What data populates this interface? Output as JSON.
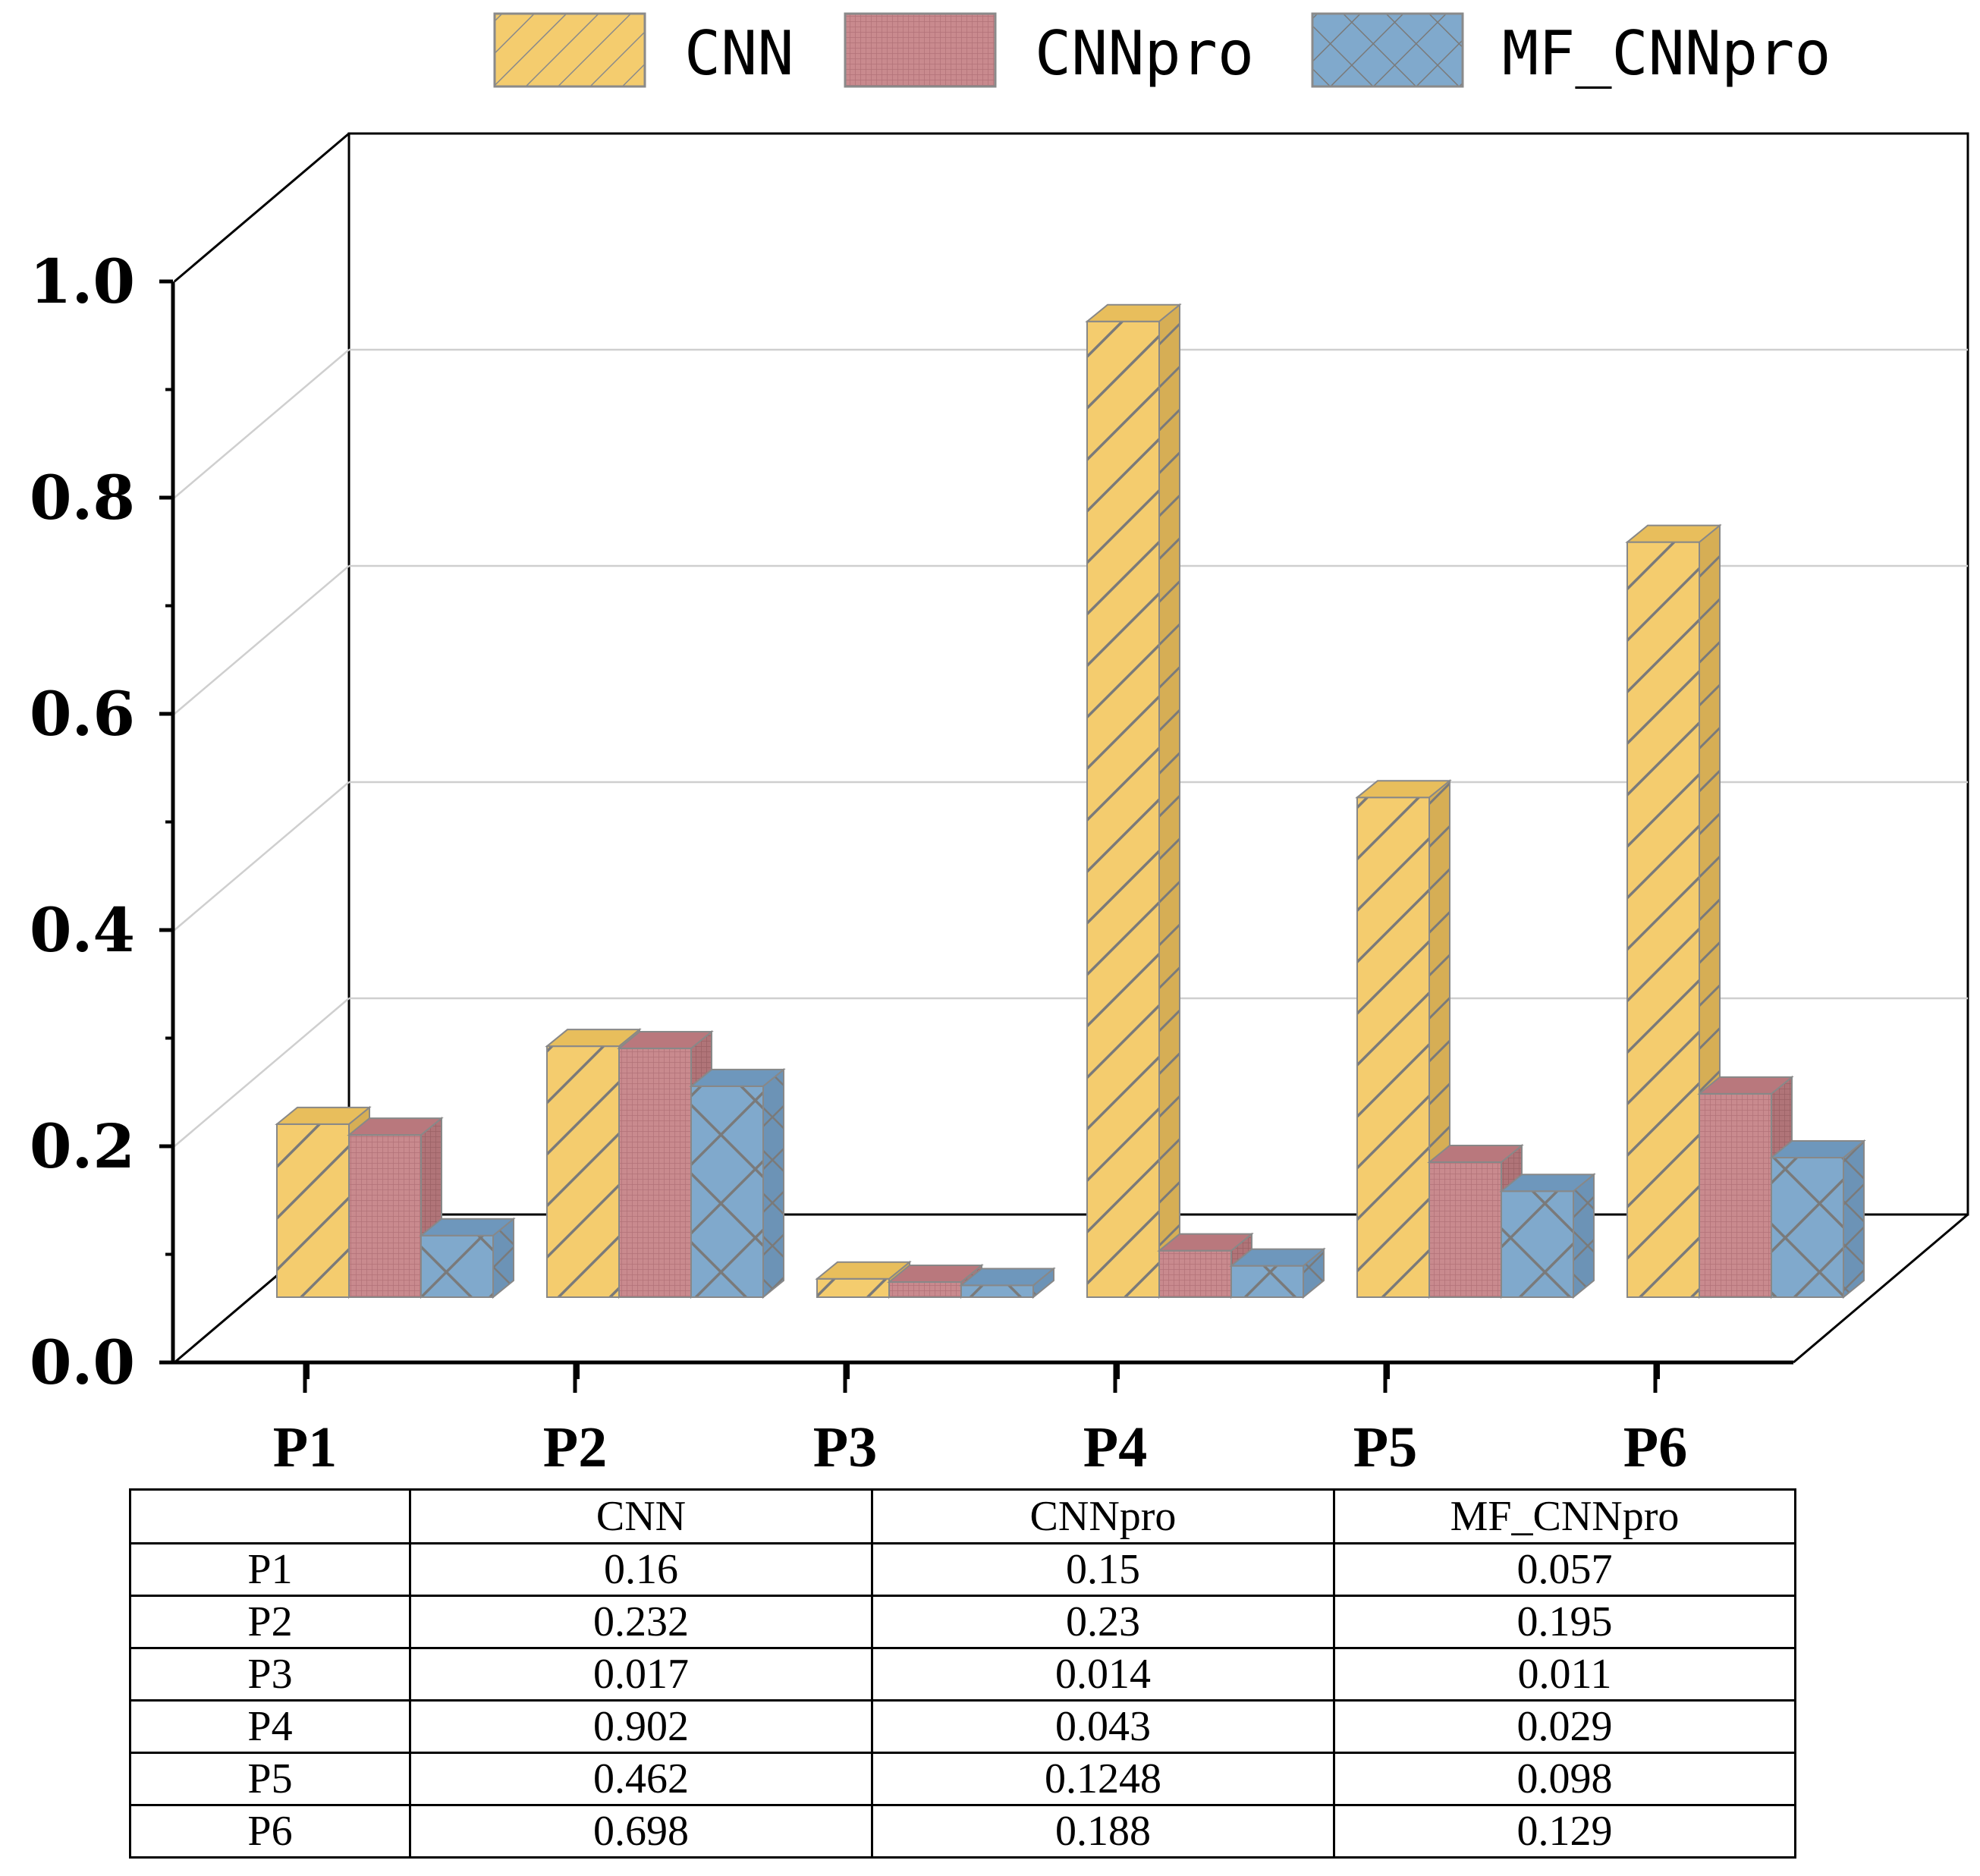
{
  "chart_data": {
    "type": "bar",
    "title": "",
    "xlabel": "",
    "ylabel": "",
    "ylim": [
      0,
      1.0
    ],
    "yticks": [
      "0.0",
      "0.2",
      "0.4",
      "0.6",
      "0.8",
      "1.0"
    ],
    "categories": [
      "P1",
      "P2",
      "P3",
      "P4",
      "P5",
      "P6"
    ],
    "series": [
      {
        "name": "CNN",
        "values": [
          0.16,
          0.232,
          0.017,
          0.902,
          0.462,
          0.698
        ],
        "color": "#F4CC6E"
      },
      {
        "name": "CNNpro",
        "values": [
          0.15,
          0.23,
          0.014,
          0.043,
          0.1248,
          0.188
        ],
        "color": "#C98A8E"
      },
      {
        "name": "MF_CNNpro",
        "values": [
          0.057,
          0.195,
          0.011,
          0.029,
          0.098,
          0.129
        ],
        "color": "#80A9CC"
      }
    ],
    "legend_position": "top",
    "grid": true
  },
  "table": {
    "header": [
      "",
      "CNN",
      "CNNpro",
      "MF_CNNpro"
    ],
    "rows": [
      [
        "P1",
        "0.16",
        "0.15",
        "0.057"
      ],
      [
        "P2",
        "0.232",
        "0.23",
        "0.195"
      ],
      [
        "P3",
        "0.017",
        "0.014",
        "0.011"
      ],
      [
        "P4",
        "0.902",
        "0.043",
        "0.029"
      ],
      [
        "P5",
        "0.462",
        "0.1248",
        "0.098"
      ],
      [
        "P6",
        "0.698",
        "0.188",
        "0.129"
      ]
    ]
  }
}
